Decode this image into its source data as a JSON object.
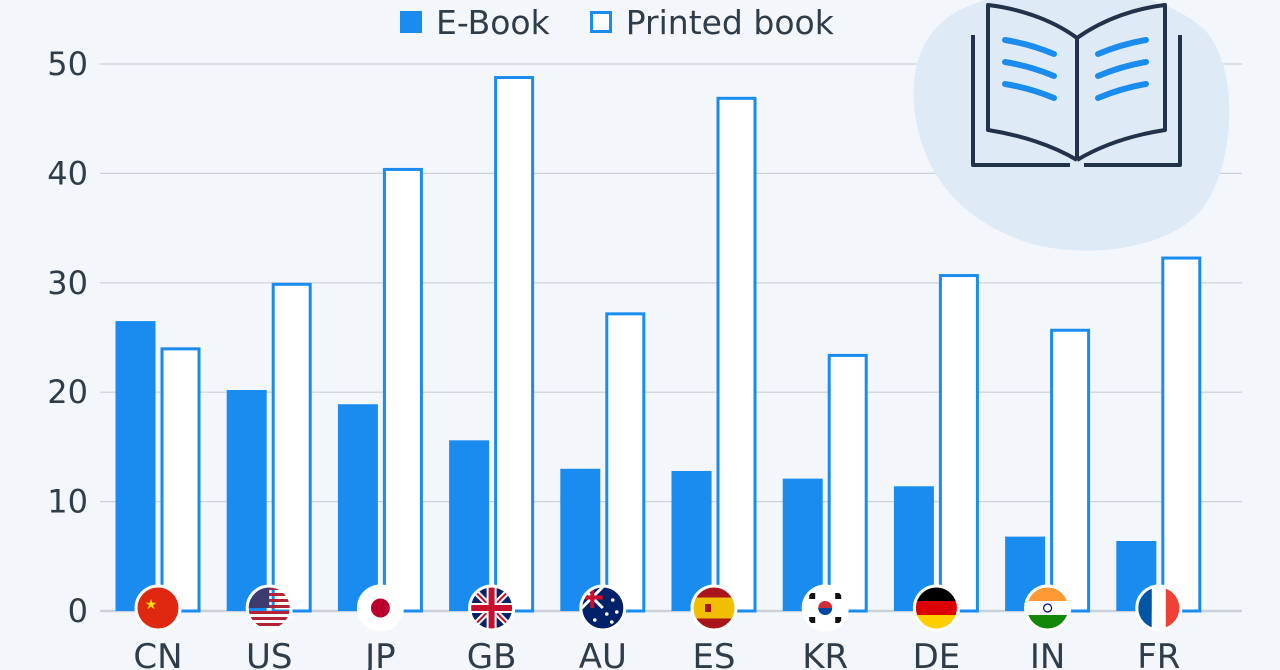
{
  "legend": {
    "ebook_label": "E-Book",
    "printed_label": "Printed book"
  },
  "colors": {
    "ebook": "#1a8cf0",
    "printed_stroke": "#1a8cf0",
    "printed_fill": "#ffffff",
    "grid": "#c9d1da",
    "axis_text": "#2f3c4a",
    "icon_blob": "#dfeaf7",
    "icon_stroke": "#21324a",
    "icon_lines": "#1a8cf0"
  },
  "icon": "open-book-icon",
  "chart_data": {
    "type": "bar",
    "categories": [
      "CN",
      "US",
      "JP",
      "GB",
      "AU",
      "ES",
      "KR",
      "DE",
      "IN",
      "FR"
    ],
    "flags": [
      "flag-cn-icon",
      "flag-us-icon",
      "flag-jp-icon",
      "flag-gb-icon",
      "flag-au-icon",
      "flag-es-icon",
      "flag-kr-icon",
      "flag-de-icon",
      "flag-in-icon",
      "flag-fr-icon"
    ],
    "series": [
      {
        "name": "E-Book",
        "values": [
          26.5,
          20.2,
          18.9,
          15.6,
          13.0,
          12.8,
          12.1,
          11.4,
          6.8,
          6.4
        ]
      },
      {
        "name": "Printed book",
        "values": [
          24.1,
          30.0,
          40.5,
          48.9,
          27.3,
          47.0,
          23.5,
          30.8,
          25.8,
          32.4
        ]
      }
    ],
    "yticks": [
      0,
      10,
      20,
      30,
      40,
      50
    ],
    "ylim": [
      0,
      50
    ],
    "grid": true,
    "legend_position": "top-center"
  }
}
